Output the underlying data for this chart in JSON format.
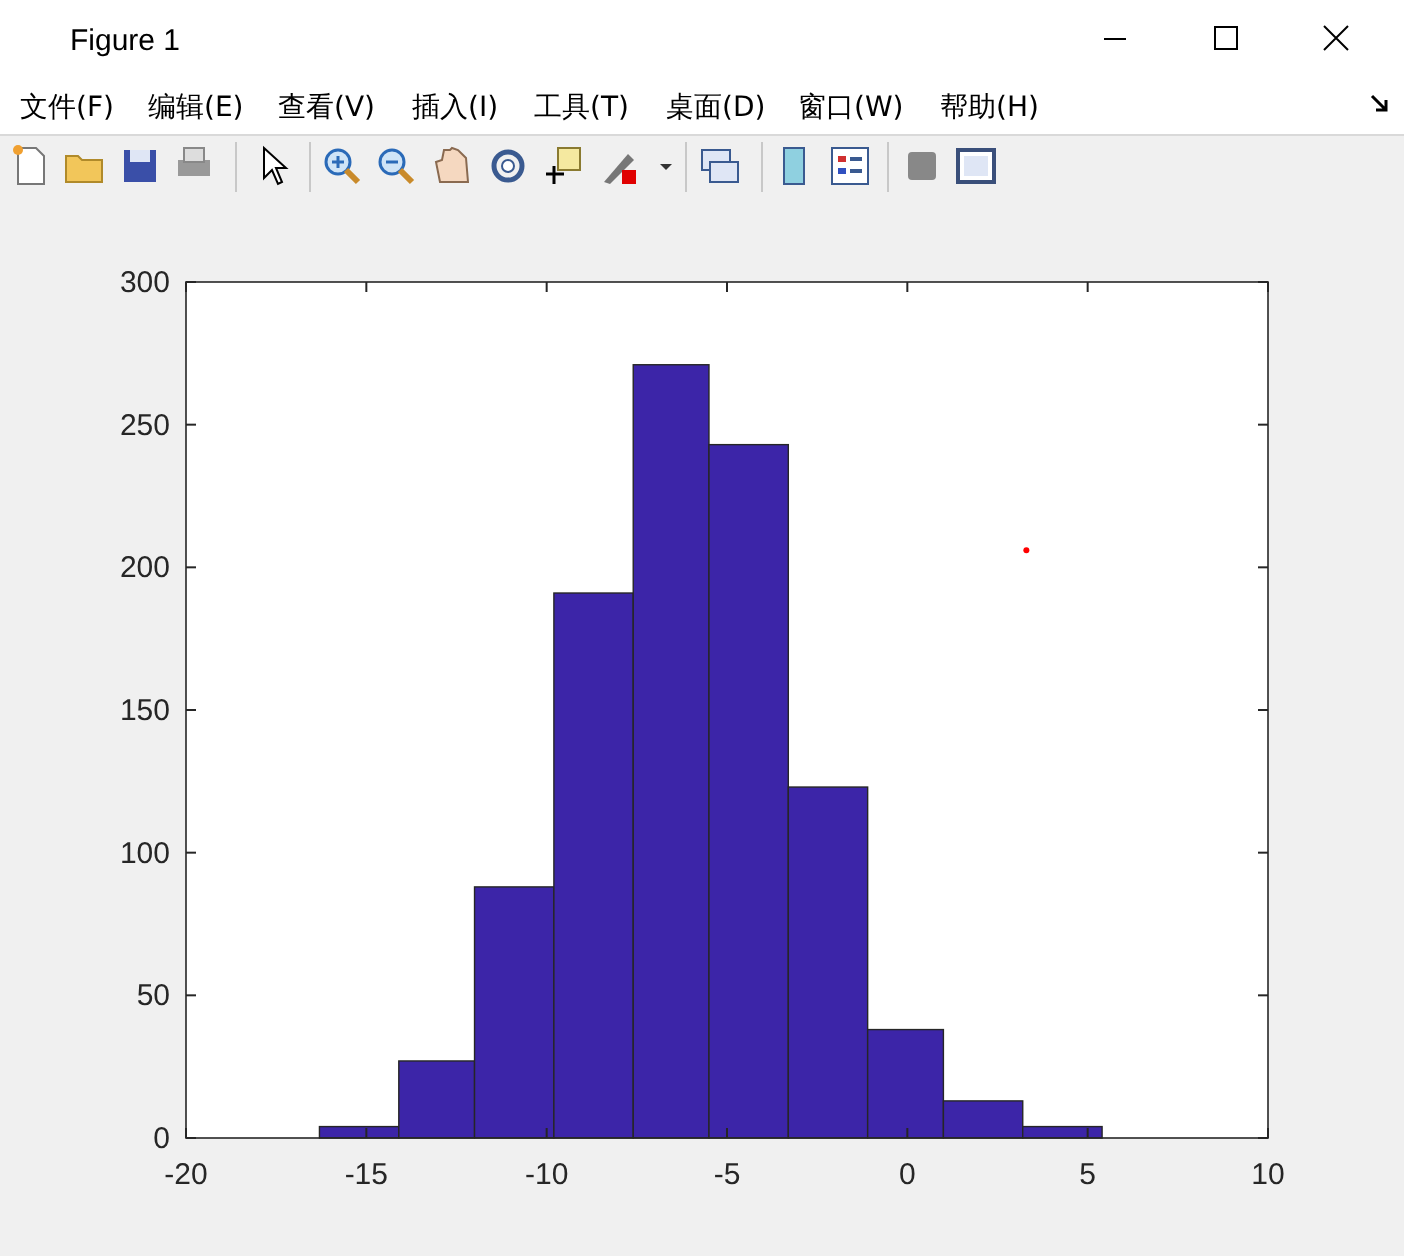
{
  "chart_data": {
    "type": "histogram",
    "title": "Figure 1",
    "annotations": [
      "文件(F)",
      "编辑(E)",
      "查看(V)",
      "插入(I)",
      "工具(T)",
      "桌面(D)",
      "窗口(W)",
      "帮助(H)"
    ],
    "bins": [
      -16.3,
      -14.1,
      -12.0,
      -9.8,
      -7.6,
      -5.5,
      -3.3,
      -1.1,
      1.0,
      3.2,
      5.4
    ],
    "xlim": [
      -20,
      10
    ],
    "xticks": [
      -20,
      -15,
      -10,
      -5,
      0,
      5,
      10
    ],
    "ylim": [
      0,
      300
    ],
    "yticks": [
      0,
      50,
      100,
      150,
      200,
      250,
      300
    ],
    "series": [
      {
        "color": "#3c25a8",
        "values": [
          4,
          27,
          88,
          191,
          271,
          243,
          123,
          38,
          13,
          4
        ]
      },
      {
        "type": "scatter",
        "color": "#ff0000",
        "x": [
          3.3
        ],
        "values": [
          206
        ],
        "marker": "circle"
      }
    ]
  }
}
